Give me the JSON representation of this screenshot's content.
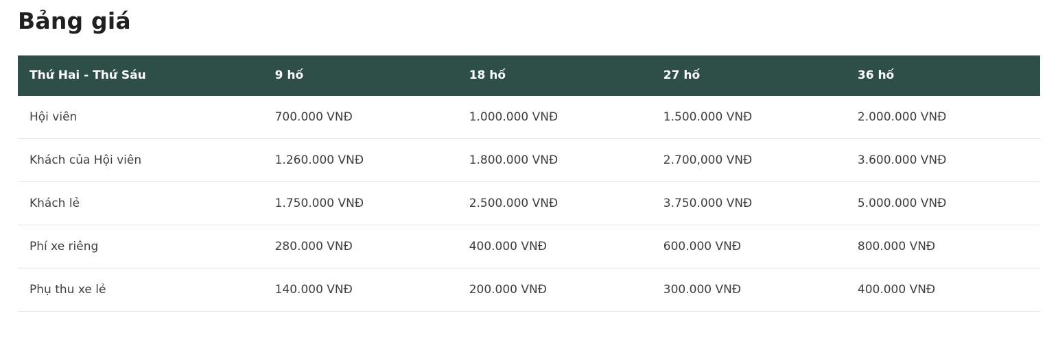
{
  "page": {
    "title": "Bảng giá"
  },
  "table": {
    "columns": [
      "Thứ Hai - Thứ Sáu",
      "9 hố",
      "18 hố",
      "27 hố",
      "36 hố"
    ],
    "rows": [
      {
        "label": "Hội viên",
        "values": [
          "700.000 VNĐ",
          "1.000.000 VNĐ",
          "1.500.000 VNĐ",
          "2.000.000 VNĐ"
        ]
      },
      {
        "label": "Khách của Hội viên",
        "values": [
          "1.260.000 VNĐ",
          "1.800.000 VNĐ",
          "2.700,000 VNĐ",
          "3.600.000 VNĐ"
        ]
      },
      {
        "label": "Khách lẻ",
        "values": [
          "1.750.000 VNĐ",
          "2.500.000 VNĐ",
          "3.750.000 VNĐ",
          "5.000.000 VNĐ"
        ]
      },
      {
        "label": "Phí xe riêng",
        "values": [
          "280.000 VNĐ",
          "400.000 VNĐ",
          "600.000 VNĐ",
          "800.000 VNĐ"
        ]
      },
      {
        "label": "Phụ thu xe lẻ",
        "values": [
          "140.000 VNĐ",
          "200.000 VNĐ",
          "300.000 VNĐ",
          "400.000 VNĐ"
        ]
      }
    ]
  },
  "colors": {
    "header_bg": "#2d4f48",
    "header_text": "#ffffff",
    "body_text": "#3e3e3e",
    "divider": "#e3e3e3",
    "title_text": "#1f2021"
  }
}
